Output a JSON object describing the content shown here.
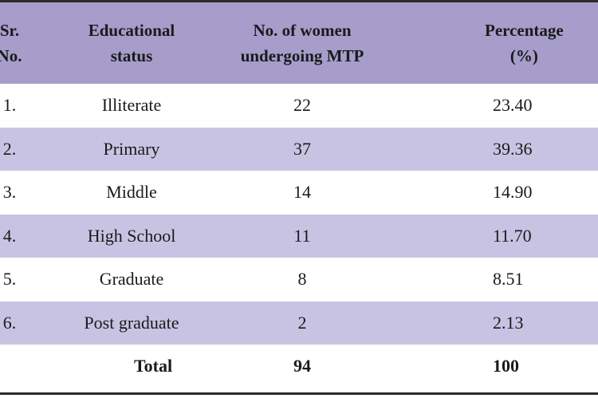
{
  "table": {
    "headers": {
      "sr_line1": "Sr.",
      "sr_line2": "No.",
      "edu_line1": "Educational",
      "edu_line2": "status",
      "num_line1": "No. of women",
      "num_line2": "undergoing MTP",
      "pct_line1": "Percentage",
      "pct_line2": "(%)"
    },
    "rows": [
      {
        "sr": "1.",
        "status": "Illiterate",
        "count": "22",
        "percent": "23.40"
      },
      {
        "sr": "2.",
        "status": "Primary",
        "count": "37",
        "percent": "39.36"
      },
      {
        "sr": "3.",
        "status": "Middle",
        "count": "14",
        "percent": "14.90"
      },
      {
        "sr": "4.",
        "status": "High School",
        "count": "11",
        "percent": "11.70"
      },
      {
        "sr": "5.",
        "status": "Graduate",
        "count": "8",
        "percent": "8.51"
      },
      {
        "sr": "6.",
        "status": "Post graduate",
        "count": "2",
        "percent": "2.13"
      }
    ],
    "total": {
      "label": "Total",
      "count": "94",
      "percent": "100"
    }
  },
  "colors": {
    "header_bg": "#a69dcb",
    "shaded_row_bg": "#c9c3e3",
    "white_row_bg": "#ffffff",
    "rule": "#2b2b2b"
  }
}
